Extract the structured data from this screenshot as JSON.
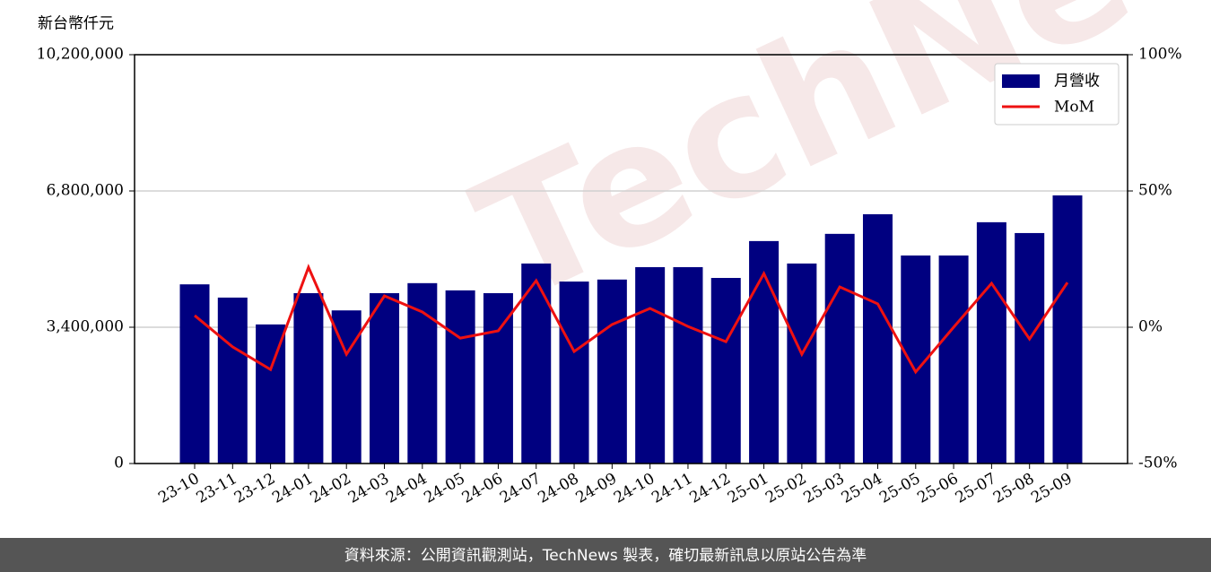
{
  "chart_data": {
    "type": "bar_line",
    "y_label": "新台幣仟元",
    "watermark": "TechNews",
    "footer": "資料來源：公開資訊觀測站，TechNews 製表，確切最新訊息以原站公告為準",
    "categories": [
      "23-10",
      "23-11",
      "23-12",
      "24-01",
      "24-02",
      "24-03",
      "24-04",
      "24-05",
      "24-06",
      "24-07",
      "24-08",
      "24-09",
      "24-10",
      "24-11",
      "24-12",
      "25-01",
      "25-02",
      "25-03",
      "25-04",
      "25-05",
      "25-06",
      "25-07",
      "25-08",
      "25-09"
    ],
    "series": [
      {
        "name": "月營收",
        "color": "#000080",
        "values": [
          4470000,
          4140000,
          3470000,
          4250000,
          3820000,
          4250000,
          4500000,
          4320000,
          4250000,
          4990000,
          4540000,
          4590000,
          4900000,
          4900000,
          4630000,
          5550000,
          4990000,
          5730000,
          6220000,
          5190000,
          5190000,
          6020000,
          5750000,
          6690000
        ]
      },
      {
        "name": "MoM",
        "color": "#ee1111",
        "axis": "y2",
        "values": [
          4.3,
          -7.2,
          -15.5,
          22,
          -9.9,
          11.5,
          5.6,
          -4,
          -1.3,
          17.1,
          -8.9,
          1,
          6.9,
          0.3,
          -5.3,
          19.7,
          -9.9,
          14.8,
          8.6,
          -16.4,
          0,
          16.1,
          -4.3,
          16.4
        ]
      }
    ],
    "ylim": [
      0,
      10200000
    ],
    "yticks": [
      0,
      {
        "value": 3400000,
        "label": "3,400,000"
      },
      {
        "value": 6800000,
        "label": "6,800,000"
      },
      {
        "value": 10200000,
        "label": "10,200,000"
      }
    ],
    "y2lim": [
      -50,
      100
    ],
    "y2ticks": [
      {
        "value": -50,
        "label": "-50%"
      },
      {
        "value": 0,
        "label": "0%"
      },
      {
        "value": 50,
        "label": "50%"
      },
      {
        "value": 100,
        "label": "100%"
      }
    ],
    "grid": true,
    "legend": "upper right"
  }
}
